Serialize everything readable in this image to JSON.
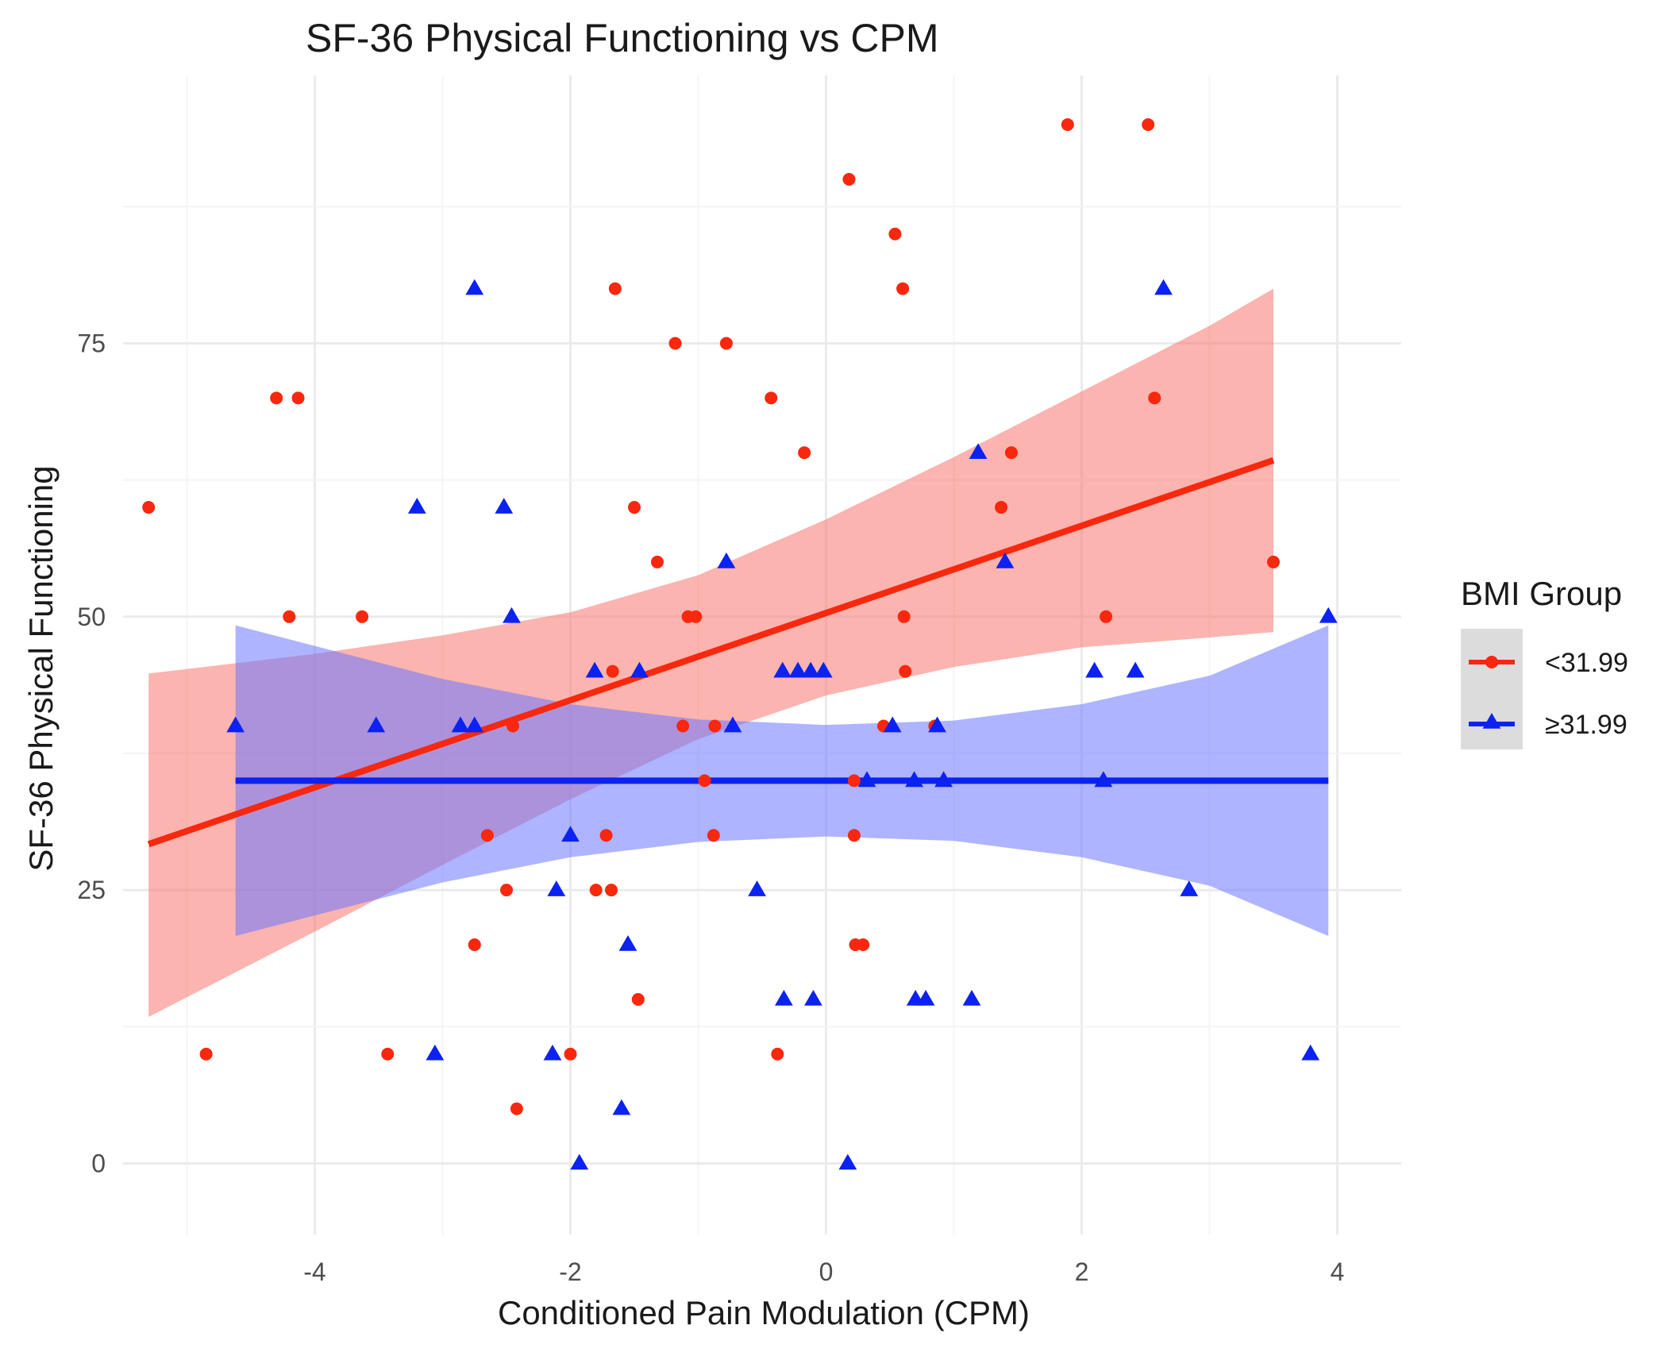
{
  "chart_data": {
    "type": "scatter",
    "title": "SF-36 Physical Functioning vs CPM",
    "xlabel": "Conditioned Pain Modulation (CPM)",
    "ylabel": "SF-36 Physical Functioning",
    "xlim": [
      -5.5,
      4.5
    ],
    "ylim": [
      -6.5,
      99.5
    ],
    "x_ticks": [
      -4,
      -2,
      0,
      2,
      4
    ],
    "x_tick_labels": [
      "-4",
      "-2",
      "0",
      "2",
      "4"
    ],
    "y_ticks": [
      0,
      25,
      50,
      75
    ],
    "y_tick_labels": [
      "0",
      "25",
      "50",
      "75"
    ],
    "grid": true,
    "legend": {
      "title": "BMI Group",
      "position": "right",
      "entries": [
        "<31.99",
        "≥31.99"
      ]
    },
    "series": [
      {
        "name": "<31.99",
        "color": "#f8280e",
        "band_color": "#f8766d",
        "marker": "circle",
        "fit": {
          "x": [
            -5.3,
            3.5
          ],
          "y": [
            29.2,
            64.3
          ]
        },
        "ci_upper": [
          [
            -5.3,
            44.8
          ],
          [
            -4.0,
            46.6
          ],
          [
            -3.0,
            48.3
          ],
          [
            -2.0,
            50.4
          ],
          [
            -1.0,
            53.8
          ],
          [
            0.0,
            58.9
          ],
          [
            1.0,
            64.6
          ],
          [
            2.0,
            70.6
          ],
          [
            3.0,
            76.6
          ],
          [
            3.5,
            80.0
          ]
        ],
        "ci_lower": [
          [
            -5.3,
            13.4
          ],
          [
            -4.0,
            21.2
          ],
          [
            -3.0,
            27.3
          ],
          [
            -2.0,
            33.3
          ],
          [
            -1.0,
            38.8
          ],
          [
            0.0,
            42.8
          ],
          [
            1.0,
            45.4
          ],
          [
            2.0,
            47.2
          ],
          [
            3.0,
            48.1
          ],
          [
            3.5,
            48.6
          ]
        ],
        "x": [
          -5.3,
          -4.85,
          -4.3,
          -4.13,
          -4.2,
          -3.63,
          -3.43,
          -2.75,
          -2.65,
          -2.5,
          -2.45,
          -2.42,
          -2.0,
          -1.8,
          -1.72,
          -1.68,
          -1.67,
          -1.65,
          -1.5,
          -1.47,
          -1.32,
          -1.18,
          -1.12,
          -1.08,
          -1.02,
          -0.95,
          -0.88,
          -0.87,
          -0.78,
          -0.43,
          -0.38,
          -0.17,
          0.18,
          0.22,
          0.22,
          0.23,
          0.29,
          0.45,
          0.54,
          0.6,
          0.61,
          0.62,
          0.85,
          1.37,
          1.45,
          1.89,
          2.19,
          2.52,
          2.57,
          3.5
        ],
        "y": [
          60,
          10,
          70,
          70,
          50,
          50,
          10,
          20,
          30,
          25,
          40,
          5,
          10,
          25,
          30,
          25,
          45,
          80,
          60,
          15,
          55,
          75,
          40,
          50,
          50,
          35,
          30,
          40,
          75,
          70,
          10,
          65,
          90,
          35,
          30,
          20,
          20,
          40,
          85,
          80,
          50,
          45,
          40,
          60,
          65,
          95,
          50,
          95,
          70,
          55
        ]
      },
      {
        "name": "≥31.99",
        "color": "#0b22f1",
        "band_color": "#6b76ff",
        "marker": "triangle",
        "fit": {
          "x": [
            -4.62,
            3.93
          ],
          "y": [
            35.0,
            35.0
          ]
        },
        "ci_upper": [
          [
            -4.62,
            49.2
          ],
          [
            -3.0,
            44.3
          ],
          [
            -2.0,
            42.0
          ],
          [
            -1.0,
            40.6
          ],
          [
            0.0,
            40.1
          ],
          [
            1.0,
            40.5
          ],
          [
            2.0,
            42.0
          ],
          [
            3.0,
            44.6
          ],
          [
            3.93,
            49.2
          ]
        ],
        "ci_lower": [
          [
            -4.62,
            20.8
          ],
          [
            -3.0,
            25.7
          ],
          [
            -2.0,
            28.0
          ],
          [
            -1.0,
            29.4
          ],
          [
            0.0,
            29.9
          ],
          [
            1.0,
            29.5
          ],
          [
            2.0,
            28.0
          ],
          [
            3.0,
            25.4
          ],
          [
            3.93,
            20.8
          ]
        ],
        "x": [
          -4.62,
          -3.52,
          -3.2,
          -3.06,
          -2.86,
          -2.75,
          -2.75,
          -2.52,
          -2.46,
          -2.14,
          -2.11,
          -2.0,
          -1.93,
          -1.81,
          -1.6,
          -1.55,
          -1.46,
          -0.78,
          -0.73,
          -0.54,
          -0.34,
          -0.33,
          -0.22,
          -0.12,
          -0.1,
          -0.02,
          0.17,
          0.32,
          0.52,
          0.69,
          0.7,
          0.78,
          0.87,
          0.92,
          1.14,
          1.19,
          1.4,
          2.1,
          2.17,
          2.42,
          2.64,
          2.84,
          3.79,
          3.93
        ],
        "y": [
          40,
          40,
          60,
          10,
          40,
          40,
          80,
          60,
          50,
          10,
          25,
          30,
          0,
          45,
          5,
          20,
          45,
          55,
          40,
          25,
          45,
          15,
          45,
          45,
          15,
          45,
          0,
          35,
          40,
          35,
          15,
          15,
          40,
          35,
          15,
          65,
          55,
          45,
          35,
          45,
          80,
          25,
          10,
          50
        ]
      }
    ]
  }
}
